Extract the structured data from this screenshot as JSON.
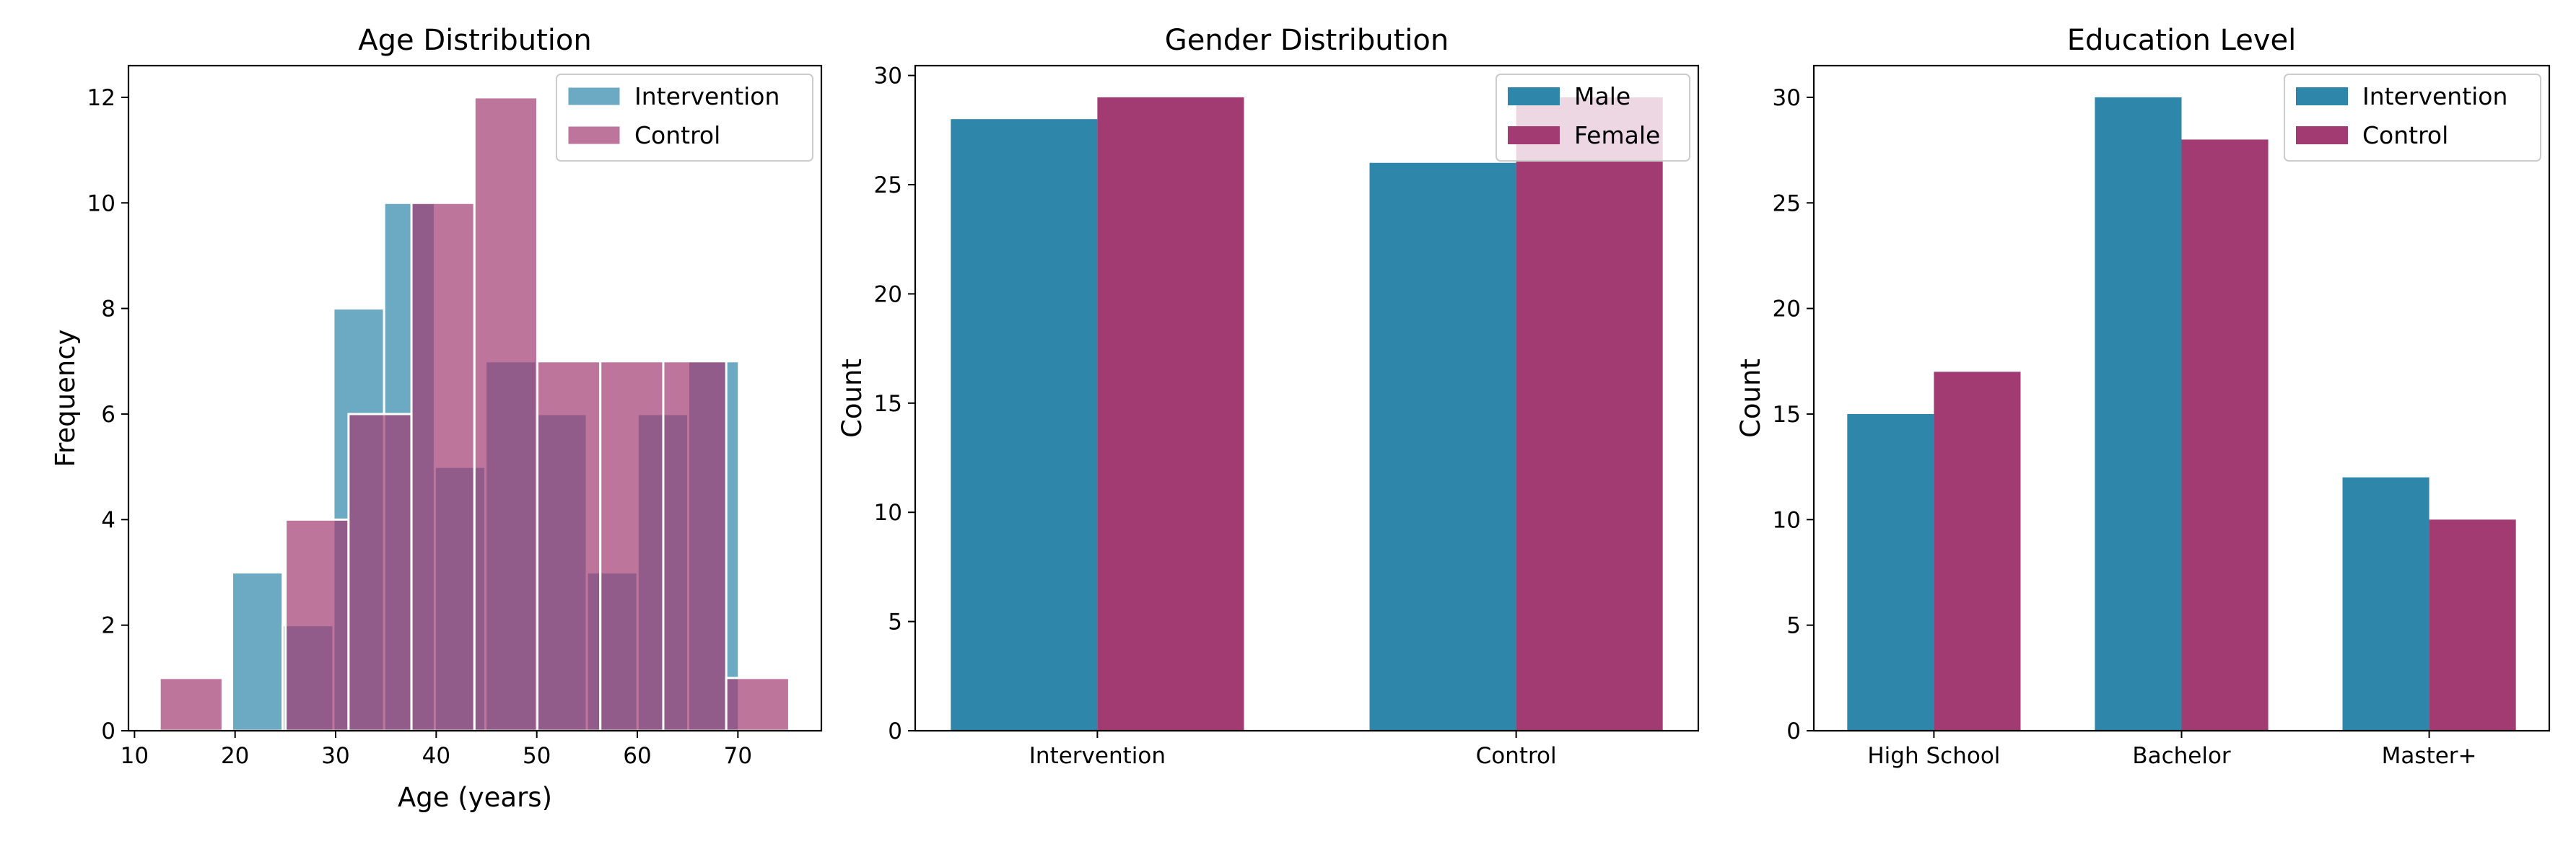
{
  "colors": {
    "intervention": "#2E86AB",
    "control": "#A23B72"
  },
  "chart_data": [
    {
      "type": "histogram",
      "title": "Age Distribution",
      "xlabel": "Age (years)",
      "ylabel": "Frequency",
      "xlim": [
        9.4,
        78.3
      ],
      "ylim": [
        0,
        12.6
      ],
      "xticks": [
        10,
        20,
        30,
        40,
        50,
        60,
        70
      ],
      "yticks": [
        0,
        2,
        4,
        6,
        8,
        10,
        12
      ],
      "legend": {
        "placement": "top-right",
        "entries": [
          "Intervention",
          "Control"
        ]
      },
      "series": [
        {
          "name": "Intervention",
          "bin_edges": [
            19.7,
            24.74,
            29.78,
            34.82,
            39.86,
            44.9,
            49.94,
            54.98,
            60.02,
            65.06,
            70.1
          ],
          "counts": [
            3,
            2,
            8,
            10,
            5,
            7,
            6,
            3,
            6,
            7
          ]
        },
        {
          "name": "Control",
          "bin_edges": [
            12.5,
            18.76,
            25.02,
            31.28,
            37.54,
            43.8,
            50.06,
            56.32,
            62.58,
            68.84,
            75.1
          ],
          "counts": [
            1,
            0,
            4,
            6,
            10,
            12,
            7,
            7,
            7,
            1
          ]
        }
      ]
    },
    {
      "type": "bar",
      "title": "Gender Distribution",
      "xlabel": "",
      "ylabel": "Count",
      "categories": [
        "Intervention",
        "Control"
      ],
      "ylim": [
        0,
        30.45
      ],
      "yticks": [
        0,
        5,
        10,
        15,
        20,
        25,
        30
      ],
      "legend": {
        "placement": "top-right",
        "entries": [
          "Male",
          "Female"
        ]
      },
      "series": [
        {
          "name": "Male",
          "values": [
            28,
            26
          ]
        },
        {
          "name": "Female",
          "values": [
            29,
            29
          ]
        }
      ]
    },
    {
      "type": "bar",
      "title": "Education Level",
      "xlabel": "",
      "ylabel": "Count",
      "categories": [
        "High School",
        "Bachelor",
        "Master+"
      ],
      "ylim": [
        0,
        31.5
      ],
      "yticks": [
        0,
        5,
        10,
        15,
        20,
        25,
        30
      ],
      "legend": {
        "placement": "top-right",
        "entries": [
          "Intervention",
          "Control"
        ]
      },
      "series": [
        {
          "name": "Intervention",
          "values": [
            15,
            30,
            12
          ]
        },
        {
          "name": "Control",
          "values": [
            17,
            28,
            10
          ]
        }
      ]
    }
  ]
}
